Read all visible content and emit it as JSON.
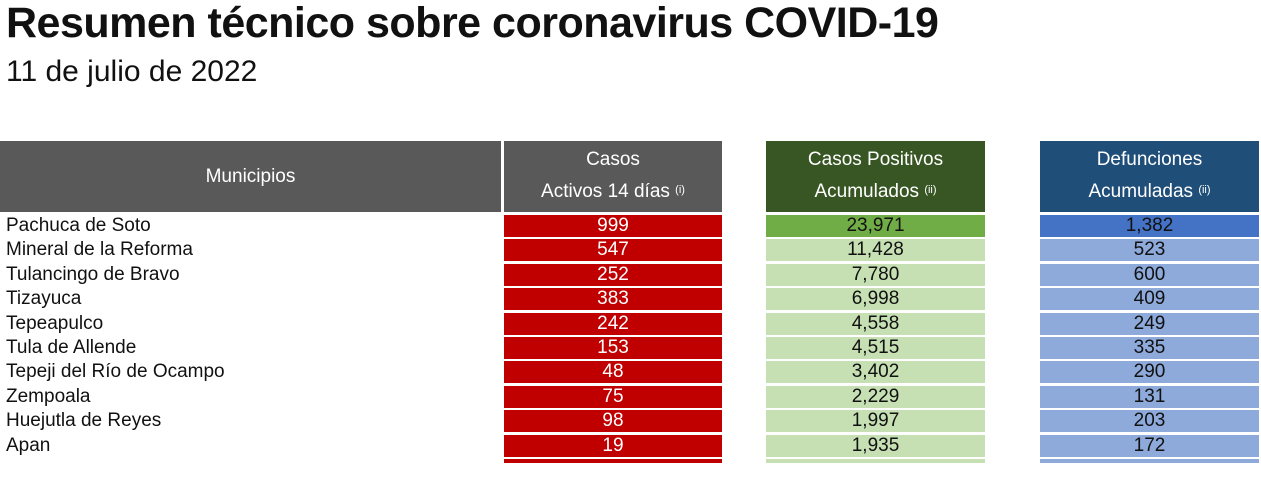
{
  "title": "Resumen técnico sobre coronavirus COVID-19",
  "date": "11 de julio de 2022",
  "headers": {
    "municipios": "Municipios",
    "activos_line1": "Casos",
    "activos_line2": "Activos 14 días",
    "activos_note": "(i)",
    "positivos_line1": "Casos Positivos",
    "positivos_line2": "Acumulados",
    "positivos_note": "(ii)",
    "defunciones_line1": "Defunciones",
    "defunciones_line2": "Acumuladas",
    "defunciones_note": "(ii)"
  },
  "colors": {
    "header_gray": "#595959",
    "header_green": "#375623",
    "header_blue": "#1f4e79",
    "activos_red": "#c00000",
    "positivos_top": "#70ad47",
    "positivos_light": "#c6e0b4",
    "defunciones_top": "#4472c4",
    "defunciones_light": "#8eaadb"
  },
  "rows": [
    {
      "municipio": "Pachuca de Soto",
      "activos": "999",
      "positivos": "23,971",
      "defunciones": "1,382"
    },
    {
      "municipio": "Mineral de la Reforma",
      "activos": "547",
      "positivos": "11,428",
      "defunciones": "523"
    },
    {
      "municipio": "Tulancingo de Bravo",
      "activos": "252",
      "positivos": "7,780",
      "defunciones": "600"
    },
    {
      "municipio": "Tizayuca",
      "activos": "383",
      "positivos": "6,998",
      "defunciones": "409"
    },
    {
      "municipio": "Tepeapulco",
      "activos": "242",
      "positivos": "4,558",
      "defunciones": "249"
    },
    {
      "municipio": "Tula de Allende",
      "activos": "153",
      "positivos": "4,515",
      "defunciones": "335"
    },
    {
      "municipio": "Tepeji del Río de Ocampo",
      "activos": "48",
      "positivos": "3,402",
      "defunciones": "290"
    },
    {
      "municipio": "Zempoala",
      "activos": "75",
      "positivos": "2,229",
      "defunciones": "131"
    },
    {
      "municipio": "Huejutla de Reyes",
      "activos": "98",
      "positivos": "1,997",
      "defunciones": "203"
    },
    {
      "municipio": "Apan",
      "activos": "19",
      "positivos": "1,935",
      "defunciones": "172"
    }
  ]
}
